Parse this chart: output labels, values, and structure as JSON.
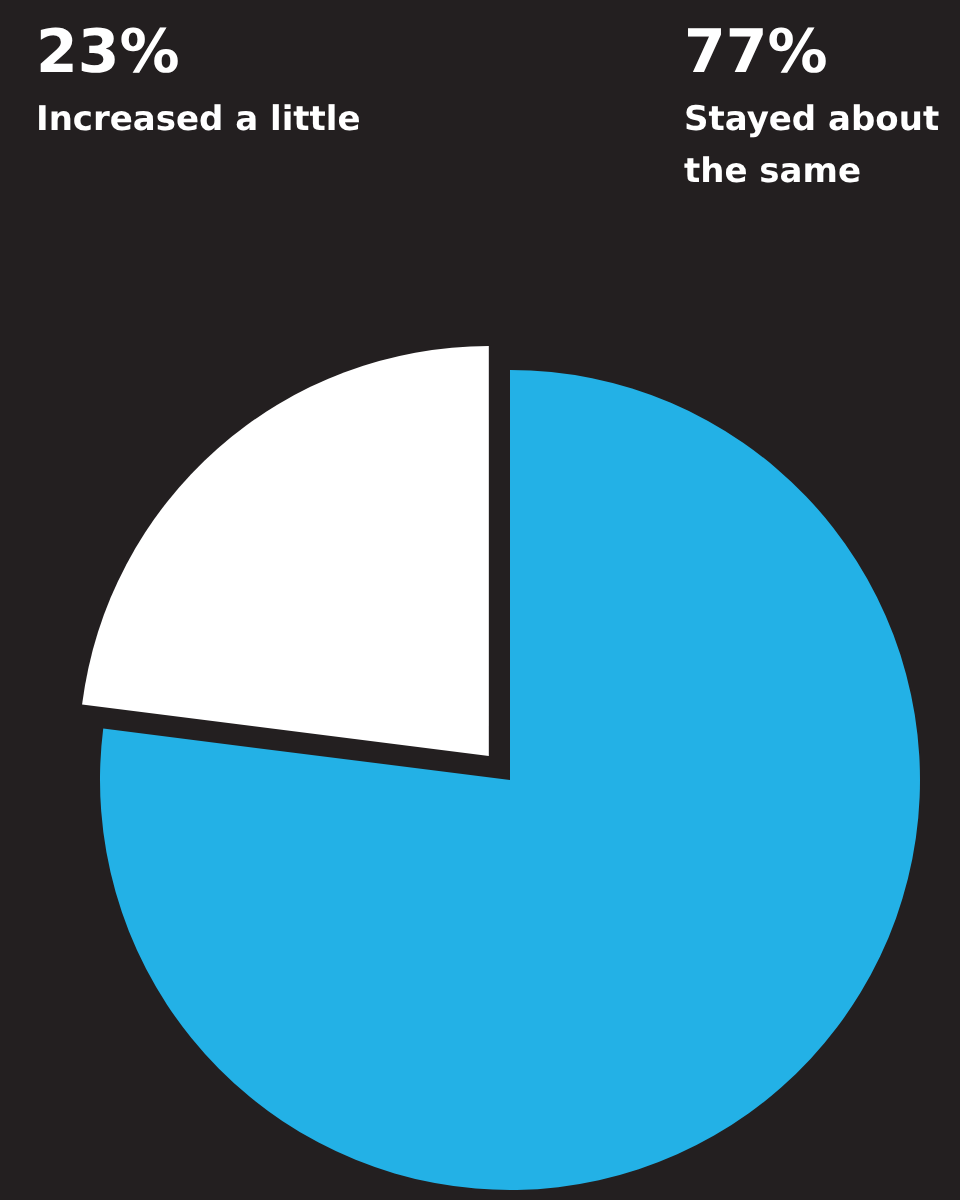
{
  "chart_data": {
    "type": "pie",
    "categories": [
      "Increased a little",
      "Stayed about the same"
    ],
    "values": [
      23,
      77
    ],
    "colors": [
      "#ffffff",
      "#23b1e6"
    ],
    "value_labels": [
      "23%",
      "77%"
    ]
  }
}
